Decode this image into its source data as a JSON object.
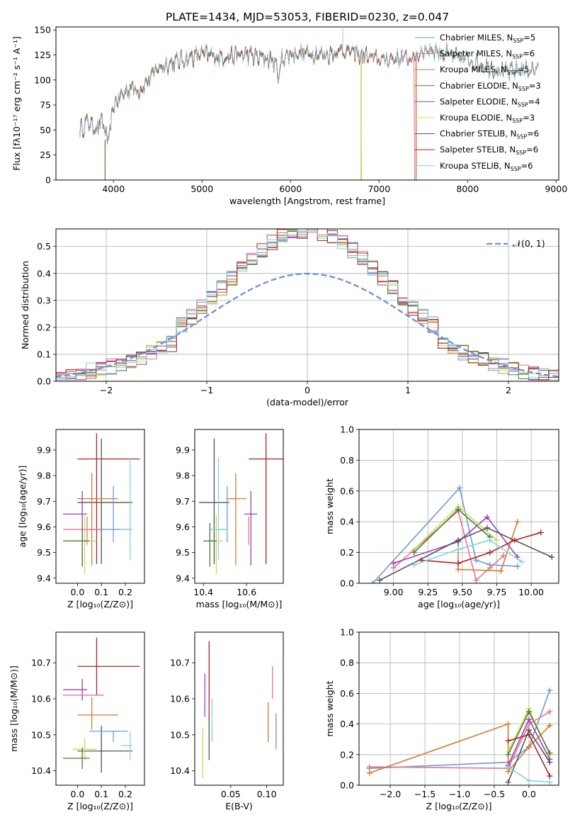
{
  "page_title": "PLATE=1434, MJD=53053, FIBERID=0230, z=0.047",
  "chart_data": [
    {
      "id": "spectrum",
      "type": "line",
      "xlabel": "wavelength [Angstrom, rest frame]",
      "ylabel": "Flux [fλ10⁻¹⁷ erg cm⁻² s⁻¹ A⁻¹]",
      "xlim": [
        3350,
        9030
      ],
      "ylim": [
        0,
        153
      ],
      "xticks": [
        4000,
        5000,
        6000,
        7000,
        8000,
        9000
      ],
      "yticks": [
        0,
        25,
        50,
        75,
        100,
        125,
        150
      ],
      "legend_position": "top-right",
      "continuum": {
        "x": [
          3620,
          3700,
          3800,
          3880,
          3940,
          4000,
          4100,
          4200,
          4300,
          4400,
          4500,
          4700,
          5000,
          5200,
          5500,
          5800,
          5880,
          5900,
          6000,
          6200,
          6400,
          6600,
          6800,
          7000,
          7200,
          7400,
          7500,
          7600,
          7800,
          8000,
          8200,
          8400,
          8600,
          8800
        ],
        "y": [
          50,
          58,
          52,
          58,
          35,
          75,
          85,
          93,
          90,
          100,
          112,
          118,
          126,
          123,
          125,
          120,
          104,
          122,
          126,
          127,
          125,
          130,
          125,
          120,
          122,
          122,
          130,
          130,
          125,
          120,
          115,
          108,
          110,
          110
        ]
      },
      "series": [
        {
          "name": "Chabrier MILES, N_SSP=5",
          "color": "#6b9bd6",
          "end": 8800
        },
        {
          "name": "Salpeter MILES, N_SSP=6",
          "color": "#e8738f",
          "end": 8800
        },
        {
          "name": "Kroupa MILES, N_SSP=5",
          "color": "#d97a2a",
          "end": 8800
        },
        {
          "name": "Chabrier ELODIE, N_SSP=3",
          "color": "#4f7a3c",
          "end": 6800
        },
        {
          "name": "Salpeter ELODIE, N_SSP=4",
          "color": "#9c3fb5",
          "end": 6800
        },
        {
          "name": "Kroupa ELODIE, N_SSP=3",
          "color": "#c8dc52",
          "end": 6800
        },
        {
          "name": "Chabrier STELIB, N_SSP=6",
          "color": "#555555",
          "end": 8800
        },
        {
          "name": "Salpeter STELIB, N_SSP=6",
          "color": "#b22222",
          "end": 7400
        },
        {
          "name": "Kroupa STELIB, N_SSP=6",
          "color": "#7fd6df",
          "end": 8800
        }
      ],
      "legend_labels": [
        "Chabrier MILES, N",
        "Salpeter MILES, N",
        "Kroupa MILES, N",
        "Chabrier ELODIE, N",
        "Salpeter ELODIE, N",
        "Kroupa ELODIE, N",
        "Chabrier STELIB, N",
        "Salpeter STELIB, N",
        "Kroupa STELIB, N"
      ],
      "legend_sub": "SSP",
      "legend_values": [
        "=5",
        "=6",
        "=5",
        "=3",
        "=4",
        "=3",
        "=6",
        "=6",
        "=6"
      ]
    },
    {
      "id": "residuals",
      "type": "line",
      "xlabel": "(data-model)/error",
      "ylabel": "Normed distribution",
      "xlim": [
        -2.5,
        2.5
      ],
      "ylim": [
        0,
        0.565
      ],
      "xticks": [
        -2,
        -1,
        0,
        1,
        2
      ],
      "yticks": [
        0.0,
        0.1,
        0.2,
        0.3,
        0.4,
        0.5
      ],
      "gaussian_label": "𝒩(0, 1)",
      "gaussian_color": "#6b8fd6",
      "bin_width": 0.1,
      "legend_position": "top-right"
    },
    {
      "id": "age-vs-Z",
      "type": "scatter",
      "xlabel": "Z [log₁₀(Z/Z⊙)]",
      "ylabel": "age  [log₁₀(age/yr)]",
      "xlim": [
        -0.09,
        0.28
      ],
      "ylim": [
        9.38,
        9.98
      ],
      "xticks": [
        0.0,
        0.1,
        0.2
      ],
      "yticks": [
        9.4,
        9.5,
        9.6,
        9.7,
        9.8,
        9.9
      ],
      "points": [
        {
          "x": 0.08,
          "y": 9.865,
          "xerr": [
            0.08,
            0.18
          ],
          "yerr": [
            0.41,
            0.1
          ],
          "color": "#b22222"
        },
        {
          "x": 0.1,
          "y": 9.695,
          "xerr": [
            0.1,
            0.13
          ],
          "yerr": [
            0.24,
            0.25
          ],
          "color": "#555555"
        },
        {
          "x": 0.06,
          "y": 9.71,
          "xerr": [
            0.06,
            0.11
          ],
          "yerr": [
            0.26,
            0.1
          ],
          "color": "#d97a2a"
        },
        {
          "x": 0.02,
          "y": 9.65,
          "xerr": [
            0.08,
            0.02
          ],
          "yerr": [
            0.2,
            0.09
          ],
          "color": "#9c3fb5"
        },
        {
          "x": 0.15,
          "y": 9.59,
          "xerr": [
            0.1,
            0.06
          ],
          "yerr": [
            0.05,
            0.17
          ],
          "color": "#6b9bd6"
        },
        {
          "x": 0.22,
          "y": 9.59,
          "xerr": [
            0.04,
            0.01
          ],
          "yerr": [
            0.12,
            0.28
          ],
          "color": "#7fd6df"
        },
        {
          "x": 0.04,
          "y": 9.59,
          "xerr": [
            0.1,
            0.07
          ],
          "yerr": [
            0.06,
            0.05
          ],
          "color": "#e8738f"
        },
        {
          "x": 0.03,
          "y": 9.545,
          "xerr": [
            0.05,
            0.05
          ],
          "yerr": [
            0.13,
            0.1
          ],
          "color": "#c8dc52"
        },
        {
          "x": 0.02,
          "y": 9.545,
          "xerr": [
            0.08,
            0.03
          ],
          "yerr": [
            0.1,
            0.07
          ],
          "color": "#4f7a3c"
        }
      ]
    },
    {
      "id": "age-vs-mass",
      "type": "scatter",
      "xlabel": "mass [log₁₀(M/M⊙)]",
      "ylabel": "",
      "xlim": [
        10.36,
        10.77
      ],
      "ylim": [
        9.38,
        9.98
      ],
      "xticks": [
        10.4,
        10.6
      ],
      "yticks": [
        9.4,
        9.5,
        9.6,
        9.7,
        9.8,
        9.9
      ],
      "points": [
        {
          "x": 10.69,
          "y": 9.865,
          "xerr": [
            0.08,
            0.08
          ],
          "yerr": [
            0.41,
            0.1
          ],
          "color": "#b22222"
        },
        {
          "x": 10.45,
          "y": 9.695,
          "xerr": [
            0.07,
            0.07
          ],
          "yerr": [
            0.24,
            0.25
          ],
          "color": "#555555"
        },
        {
          "x": 10.55,
          "y": 9.71,
          "xerr": [
            0.04,
            0.05
          ],
          "yerr": [
            0.26,
            0.1
          ],
          "color": "#d97a2a"
        },
        {
          "x": 10.62,
          "y": 9.65,
          "xerr": [
            0.03,
            0.03
          ],
          "yerr": [
            0.2,
            0.09
          ],
          "color": "#9c3fb5"
        },
        {
          "x": 10.51,
          "y": 9.59,
          "xerr": [
            0.03,
            0.0
          ],
          "yerr": [
            0.05,
            0.17
          ],
          "color": "#6b9bd6"
        },
        {
          "x": 10.47,
          "y": 9.59,
          "xerr": [
            0.04,
            0.04
          ],
          "yerr": [
            0.12,
            0.28
          ],
          "color": "#7fd6df"
        },
        {
          "x": 10.61,
          "y": 9.59,
          "xerr": [
            0.0,
            0.0
          ],
          "yerr": [
            0.06,
            0.05
          ],
          "color": "#e8738f"
        },
        {
          "x": 10.46,
          "y": 9.545,
          "xerr": [
            0.03,
            0.03
          ],
          "yerr": [
            0.13,
            0.1
          ],
          "color": "#c8dc52"
        },
        {
          "x": 10.43,
          "y": 9.545,
          "xerr": [
            0.03,
            0.03
          ],
          "yerr": [
            0.1,
            0.07
          ],
          "color": "#4f7a3c"
        }
      ]
    },
    {
      "id": "massweight-vs-age",
      "type": "line",
      "xlabel": "age  [log₁₀(age/yr)]",
      "ylabel": "mass weight",
      "xlim": [
        8.75,
        10.2
      ],
      "ylim": [
        0,
        1.0
      ],
      "xticks": [
        9.0,
        9.25,
        9.5,
        9.75,
        10.0
      ],
      "yticks": [
        0.0,
        0.2,
        0.4,
        0.6,
        0.8,
        1.0
      ],
      "series": [
        {
          "color": "#6b9bd6",
          "x": [
            8.85,
            9.48,
            9.6,
            9.7,
            9.9
          ],
          "y": [
            0.0,
            0.62,
            0.15,
            0.12,
            0.11
          ]
        },
        {
          "color": "#e8738f",
          "x": [
            9.0,
            9.47,
            9.6,
            9.7,
            9.8
          ],
          "y": [
            0.1,
            0.47,
            0.02,
            0.1,
            0.18
          ]
        },
        {
          "color": "#d97a2a",
          "x": [
            9.47,
            9.47,
            9.78,
            9.9
          ],
          "y": [
            0.27,
            0.09,
            0.08,
            0.4
          ]
        },
        {
          "color": "#9c3fb5",
          "x": [
            9.0,
            9.47,
            9.68,
            9.9
          ],
          "y": [
            0.13,
            0.27,
            0.43,
            0.17
          ]
        },
        {
          "color": "#c8dc52",
          "x": [
            9.15,
            9.47,
            9.75
          ],
          "y": [
            0.22,
            0.5,
            0.28
          ]
        },
        {
          "color": "#4f7a3c",
          "x": [
            9.15,
            9.47,
            9.7
          ],
          "y": [
            0.2,
            0.48,
            0.3
          ]
        },
        {
          "color": "#555555",
          "x": [
            8.9,
            9.47,
            9.68,
            10.15
          ],
          "y": [
            0.02,
            0.28,
            0.36,
            0.17
          ]
        },
        {
          "color": "#b22222",
          "x": [
            9.2,
            9.47,
            9.7,
            9.88,
            10.07
          ],
          "y": [
            0.15,
            0.13,
            0.2,
            0.28,
            0.33
          ]
        },
        {
          "color": "#7fd6df",
          "x": [
            9.15,
            9.47,
            9.7,
            9.93
          ],
          "y": [
            0.12,
            0.22,
            0.28,
            0.14
          ]
        }
      ]
    },
    {
      "id": "mass-vs-Z",
      "type": "scatter",
      "xlabel": "Z [log₁₀(Z/Z⊙)]",
      "ylabel": "mass [log₁₀(M/M⊙)]",
      "xlim": [
        -0.09,
        0.28
      ],
      "ylim": [
        10.36,
        10.785
      ],
      "xticks": [
        0.0,
        0.1,
        0.2
      ],
      "yticks": [
        10.4,
        10.5,
        10.6,
        10.7
      ],
      "points": [
        {
          "x": 0.08,
          "y": 10.69,
          "xerr": [
            0.08,
            0.18
          ],
          "yerr": [
            0.08,
            0.08
          ],
          "color": "#b22222"
        },
        {
          "x": 0.1,
          "y": 10.455,
          "xerr": [
            0.1,
            0.13
          ],
          "yerr": [
            0.06,
            0.07
          ],
          "color": "#555555"
        },
        {
          "x": 0.06,
          "y": 10.555,
          "xerr": [
            0.06,
            0.11
          ],
          "yerr": [
            0.04,
            0.05
          ],
          "color": "#d97a2a"
        },
        {
          "x": 0.02,
          "y": 10.625,
          "xerr": [
            0.08,
            0.02
          ],
          "yerr": [
            0.03,
            0.03
          ],
          "color": "#9c3fb5"
        },
        {
          "x": 0.15,
          "y": 10.51,
          "xerr": [
            0.1,
            0.06
          ],
          "yerr": [
            0.03,
            0.0
          ],
          "color": "#6b9bd6"
        },
        {
          "x": 0.22,
          "y": 10.47,
          "xerr": [
            0.04,
            0.01
          ],
          "yerr": [
            0.04,
            0.04
          ],
          "color": "#7fd6df"
        },
        {
          "x": 0.04,
          "y": 10.61,
          "xerr": [
            0.1,
            0.07
          ],
          "yerr": [
            0.0,
            0.0
          ],
          "color": "#e8738f"
        },
        {
          "x": 0.03,
          "y": 10.46,
          "xerr": [
            0.05,
            0.05
          ],
          "yerr": [
            0.03,
            0.03
          ],
          "color": "#c8dc52"
        },
        {
          "x": 0.02,
          "y": 10.435,
          "xerr": [
            0.08,
            0.03
          ],
          "yerr": [
            0.03,
            0.03
          ],
          "color": "#4f7a3c"
        }
      ]
    },
    {
      "id": "mass-vs-ebv",
      "type": "scatter",
      "xlabel": "E(B-V)",
      "ylabel": "",
      "xlim": [
        0.0,
        0.123
      ],
      "ylim": [
        10.36,
        10.785
      ],
      "xticks": [
        0.05,
        0.1
      ],
      "yticks": [
        10.4,
        10.5,
        10.6,
        10.7
      ],
      "points": [
        {
          "x": 0.02,
          "y": 10.62,
          "yerr": [
            0.08,
            0.14
          ],
          "color": "#b22222"
        },
        {
          "x": 0.014,
          "y": 10.6,
          "yerr": [
            0.05,
            0.07
          ],
          "color": "#9c3fb5"
        },
        {
          "x": 0.02,
          "y": 10.5,
          "yerr": [
            0.07,
            0.05
          ],
          "color": "#555555"
        },
        {
          "x": 0.011,
          "y": 10.45,
          "yerr": [
            0.07,
            0.07
          ],
          "color": "#c8dc52"
        },
        {
          "x": 0.024,
          "y": 10.54,
          "yerr": [
            0.06,
            0.06
          ],
          "color": "#7fd6df"
        },
        {
          "x": 0.102,
          "y": 10.53,
          "yerr": [
            0.05,
            0.06
          ],
          "color": "#d97a2a"
        },
        {
          "x": 0.108,
          "y": 10.64,
          "yerr": [
            0.04,
            0.05
          ],
          "color": "#e8738f"
        },
        {
          "x": 0.113,
          "y": 10.51,
          "yerr": [
            0.05,
            0.05
          ],
          "color": "#6b9bd6"
        }
      ]
    },
    {
      "id": "massweight-vs-Z",
      "type": "line",
      "xlabel": "Z [log₁₀(Z/Z⊙)]",
      "ylabel": "mass weight",
      "xlim": [
        -2.45,
        0.43
      ],
      "ylim": [
        0,
        1.0
      ],
      "xticks": [
        -2.0,
        -1.5,
        -1.0,
        -0.5,
        0.0
      ],
      "yticks": [
        0.0,
        0.2,
        0.4,
        0.6,
        0.8,
        1.0
      ],
      "series": [
        {
          "color": "#6b9bd6",
          "x": [
            -2.3,
            -0.3,
            0.0,
            0.3
          ],
          "y": [
            0.11,
            0.15,
            0.25,
            0.62
          ]
        },
        {
          "color": "#e8738f",
          "x": [
            -2.3,
            -0.3,
            0.0,
            0.3
          ],
          "y": [
            0.12,
            0.11,
            0.4,
            0.48
          ]
        },
        {
          "color": "#d97a2a",
          "x": [
            -2.3,
            -0.3,
            -0.3,
            0.0,
            0.3
          ],
          "y": [
            0.08,
            0.4,
            0.09,
            0.25,
            0.39
          ]
        },
        {
          "color": "#9c3fb5",
          "x": [
            -0.3,
            0.0,
            0.3
          ],
          "y": [
            0.13,
            0.43,
            0.17
          ]
        },
        {
          "color": "#c8dc52",
          "x": [
            -0.3,
            0.0,
            0.3
          ],
          "y": [
            0.22,
            0.5,
            0.2
          ]
        },
        {
          "color": "#4f7a3c",
          "x": [
            -0.3,
            0.0,
            0.3
          ],
          "y": [
            0.2,
            0.48,
            0.21
          ]
        },
        {
          "color": "#555555",
          "x": [
            -0.3,
            0.0,
            0.3
          ],
          "y": [
            0.02,
            0.36,
            0.15
          ]
        },
        {
          "color": "#b22222",
          "x": [
            -0.3,
            0.0,
            0.3
          ],
          "y": [
            0.29,
            0.33,
            0.06
          ]
        },
        {
          "color": "#7fd6df",
          "x": [
            -0.3,
            0.0,
            0.3
          ],
          "y": [
            0.12,
            0.03,
            0.02
          ]
        }
      ]
    }
  ]
}
